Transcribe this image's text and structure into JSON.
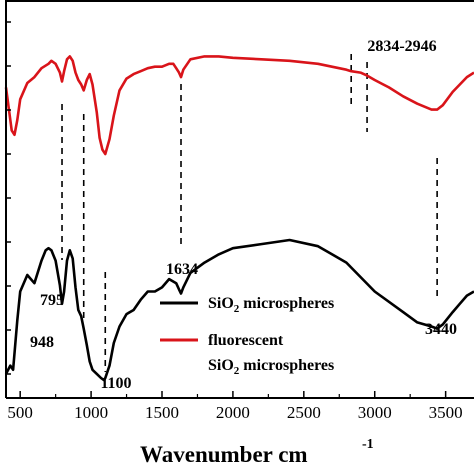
{
  "chart_data": {
    "type": "line",
    "xlabel": "Wavenumber cm",
    "xlabel_superscript": "-1",
    "xlim": [
      400,
      3700
    ],
    "ylim": [
      0,
      1
    ],
    "x_ticks": [
      500,
      1000,
      1500,
      2000,
      2500,
      3000,
      3500
    ],
    "x_tick_labels": [
      "500",
      "1000",
      "1500",
      "2000",
      "2500",
      "3000",
      "3500"
    ],
    "grid": false,
    "legend_position": "lower-center",
    "series": [
      {
        "name_parts": [
          "SiO",
          "2",
          " microspheres"
        ],
        "color": "#000000",
        "x": [
          400,
          430,
          450,
          480,
          500,
          550,
          600,
          650,
          680,
          700,
          720,
          750,
          780,
          795,
          810,
          830,
          850,
          870,
          890,
          910,
          930,
          948,
          970,
          990,
          1010,
          1040,
          1070,
          1090,
          1100,
          1130,
          1160,
          1200,
          1250,
          1300,
          1350,
          1400,
          1450,
          1500,
          1550,
          1600,
          1620,
          1634,
          1650,
          1700,
          1800,
          1900,
          2000,
          2200,
          2400,
          2600,
          2800,
          3000,
          3200,
          3300,
          3400,
          3440,
          3480,
          3550,
          3600,
          3650,
          3700
        ],
        "y": [
          0.02,
          0.06,
          0.04,
          0.28,
          0.42,
          0.5,
          0.46,
          0.57,
          0.62,
          0.63,
          0.62,
          0.57,
          0.45,
          0.36,
          0.42,
          0.57,
          0.62,
          0.58,
          0.44,
          0.33,
          0.3,
          0.24,
          0.16,
          0.08,
          0.04,
          0.02,
          0.0,
          -0.01,
          0.0,
          0.06,
          0.17,
          0.25,
          0.31,
          0.33,
          0.38,
          0.42,
          0.42,
          0.44,
          0.48,
          0.46,
          0.43,
          0.41,
          0.44,
          0.51,
          0.56,
          0.6,
          0.63,
          0.65,
          0.67,
          0.64,
          0.56,
          0.42,
          0.32,
          0.27,
          0.25,
          0.24,
          0.26,
          0.32,
          0.36,
          0.4,
          0.42
        ]
      },
      {
        "name_parts": [
          "fluorescent"
        ],
        "name_line2_parts": [
          "SiO",
          "2",
          " microspheres"
        ],
        "color": "#d9141a",
        "x": [
          400,
          440,
          460,
          480,
          500,
          550,
          600,
          650,
          700,
          720,
          750,
          780,
          795,
          810,
          830,
          850,
          870,
          890,
          910,
          930,
          948,
          970,
          990,
          1010,
          1040,
          1060,
          1080,
          1100,
          1130,
          1160,
          1200,
          1250,
          1300,
          1350,
          1400,
          1450,
          1500,
          1550,
          1580,
          1600,
          1620,
          1634,
          1650,
          1700,
          1800,
          1900,
          2000,
          2200,
          2400,
          2600,
          2800,
          2834,
          2900,
          2946,
          3000,
          3100,
          3200,
          3300,
          3400,
          3440,
          3480,
          3550,
          3600,
          3650,
          3700
        ],
        "y": [
          0.72,
          0.43,
          0.4,
          0.5,
          0.64,
          0.75,
          0.79,
          0.85,
          0.88,
          0.9,
          0.88,
          0.82,
          0.76,
          0.83,
          0.91,
          0.93,
          0.9,
          0.82,
          0.77,
          0.74,
          0.7,
          0.77,
          0.81,
          0.74,
          0.55,
          0.38,
          0.3,
          0.27,
          0.37,
          0.53,
          0.7,
          0.78,
          0.81,
          0.83,
          0.85,
          0.86,
          0.86,
          0.88,
          0.88,
          0.85,
          0.82,
          0.79,
          0.84,
          0.91,
          0.93,
          0.93,
          0.92,
          0.91,
          0.9,
          0.88,
          0.84,
          0.83,
          0.82,
          0.8,
          0.77,
          0.72,
          0.66,
          0.61,
          0.57,
          0.57,
          0.6,
          0.69,
          0.74,
          0.79,
          0.82
        ]
      }
    ],
    "annotations": [
      {
        "label": "795",
        "x": 795
      },
      {
        "label": "948",
        "x": 948
      },
      {
        "label": "1100",
        "x": 1100
      },
      {
        "label": "1634",
        "x": 1634
      },
      {
        "label": "2834-2946",
        "x": [
          2834,
          2946
        ]
      },
      {
        "label": "3440",
        "x": 3440
      }
    ]
  }
}
